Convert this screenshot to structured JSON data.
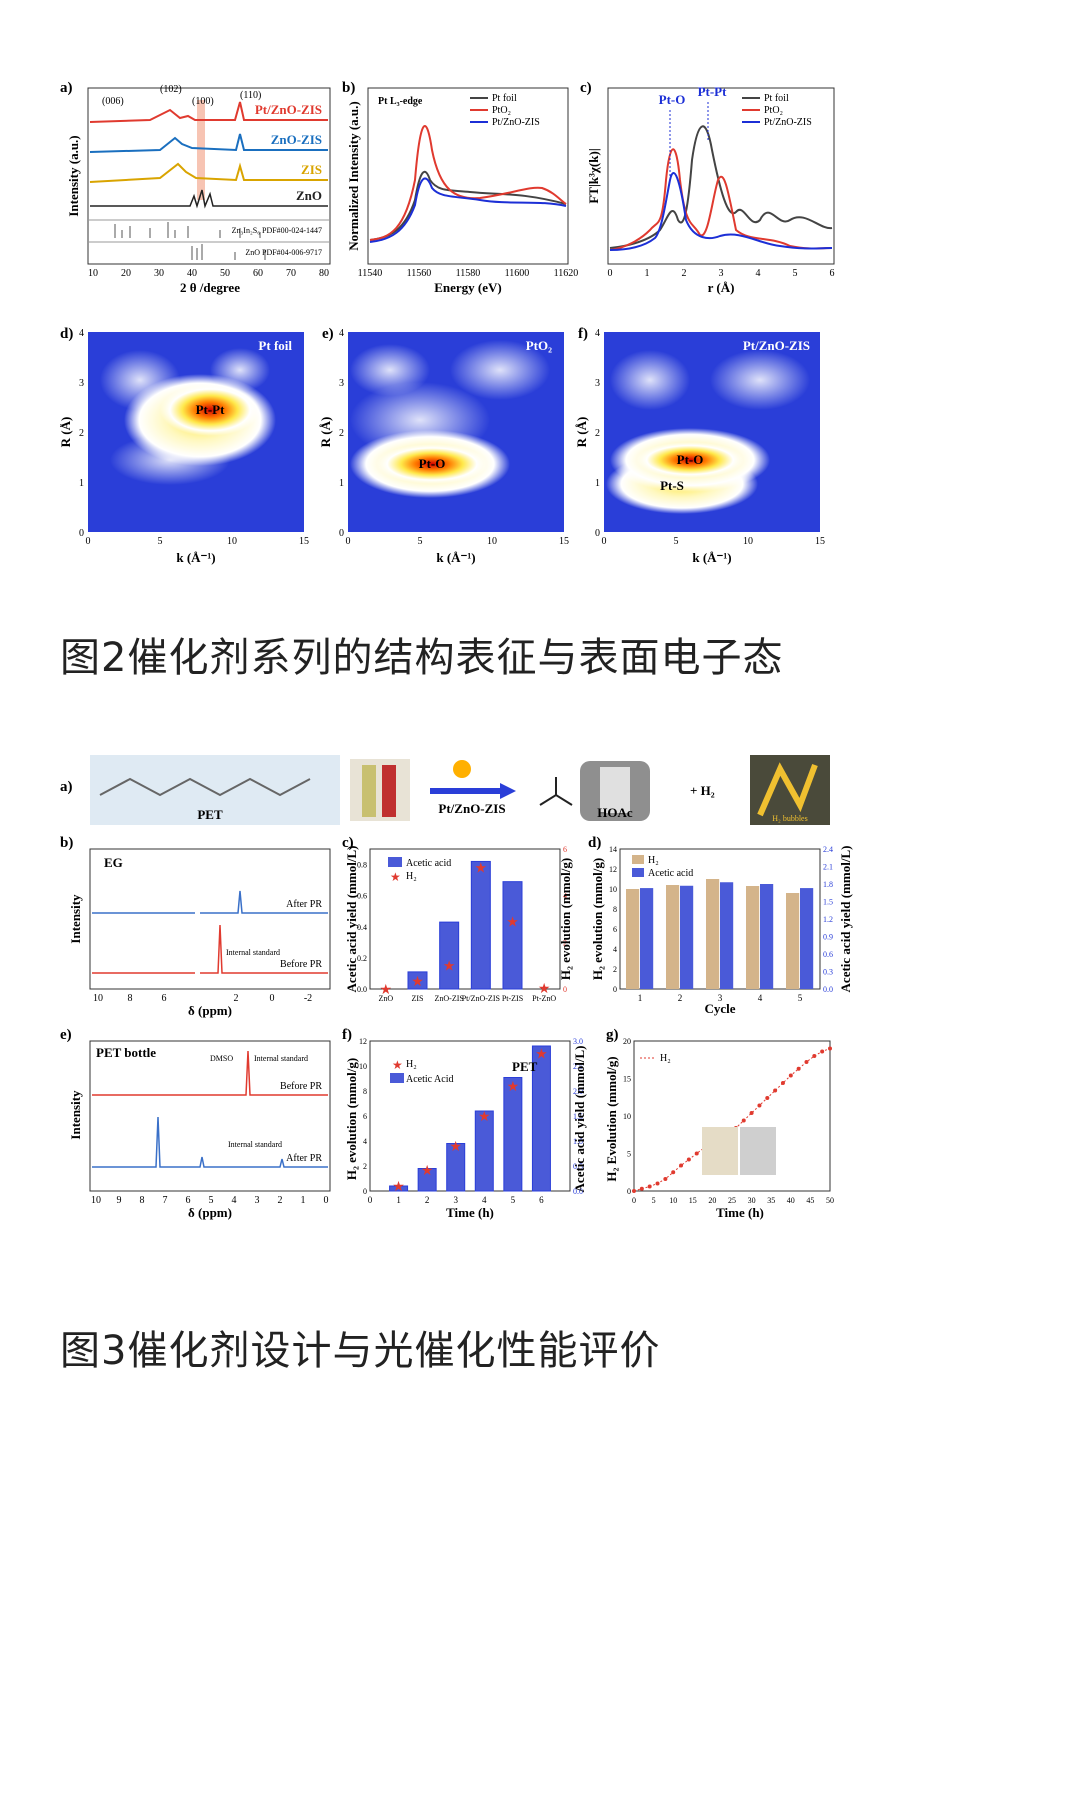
{
  "figure2": {
    "caption": "图2催化剂系列的结构表征与表面电子态",
    "a": {
      "label": "a)",
      "xlabel": "2 θ /degree",
      "ylabel": "Intensity (a.u.)",
      "peaks": [
        "(102)",
        "(006)",
        "(100)",
        "(110)"
      ],
      "traces": [
        "Pt/ZnO-ZIS",
        "ZnO-ZIS",
        "ZIS",
        "ZnO"
      ],
      "refs": [
        "Zn₃In₂S₆ PDF#00-024-1447",
        "ZnO PDF#04-006-9717"
      ],
      "xticks": [
        "10",
        "20",
        "30",
        "40",
        "50",
        "60",
        "70",
        "80"
      ]
    },
    "b": {
      "label": "b)",
      "title": "Pt L₃-edge",
      "xlabel": "Energy (eV)",
      "ylabel": "Normalized Intensity (a.u.)",
      "legend": [
        "Pt foil",
        "PtO₂",
        "Pt/ZnO-ZIS"
      ],
      "xticks": [
        "11540",
        "11560",
        "11580",
        "11600",
        "11620"
      ]
    },
    "c": {
      "label": "c)",
      "xlabel": "r (Å)",
      "ylabel": "FT|k³χ(k)|",
      "annotations": [
        "Pt-O",
        "Pt-Pt"
      ],
      "legend": [
        "Pt foil",
        "PtO₂",
        "Pt/ZnO-ZIS"
      ],
      "xticks": [
        "0",
        "1",
        "2",
        "3",
        "4",
        "5",
        "6"
      ]
    },
    "d": {
      "label": "d)",
      "title": "Pt foil",
      "spot": "Pt-Pt",
      "xlabel": "k (Å⁻¹)",
      "ylabel": "R (Å)"
    },
    "e": {
      "label": "e)",
      "title": "PtO₂",
      "spot": "Pt-O",
      "xlabel": "k (Å⁻¹)",
      "ylabel": "R (Å)"
    },
    "f": {
      "label": "f)",
      "title": "Pt/ZnO-ZIS",
      "spot": "Pt-O",
      "spot2": "Pt-S",
      "xlabel": "k (Å⁻¹)",
      "ylabel": "R (Å)"
    },
    "wt_xticks": [
      "0",
      "5",
      "10",
      "15"
    ],
    "wt_yticks": [
      "0",
      "1",
      "2",
      "3",
      "4"
    ]
  },
  "figure3": {
    "caption": "图3催化剂设计与光催化性能评价",
    "a": {
      "label": "a)",
      "pet": "PET",
      "catalyst": "Pt/ZnO-ZIS",
      "product": "HOAc",
      "plus": "+ H₂",
      "bubbles": "H₂ bubbles"
    },
    "b": {
      "label": "b)",
      "eg": "EG",
      "after": "After PR",
      "before": "Before PR",
      "internal": "Internal standard",
      "xlabel": "δ (ppm)",
      "ylabel": "Intensity",
      "xticks": [
        "10",
        "8",
        "6",
        "2",
        "0",
        "-2"
      ]
    },
    "c": {
      "label": "c)",
      "ylabel_left": "Acetic acid yield (mmol/L)",
      "ylabel_right": "H₂ evolution (mmol/g)",
      "legend": [
        "Acetic acid",
        "H₂"
      ]
    },
    "d": {
      "label": "d)",
      "xlabel": "Cycle",
      "ylabel_left": "H₂ evolution (mmol/g)",
      "ylabel_right": "Acetic acid yield (mmol/L)",
      "legend": [
        "H₂",
        "Acetic acid"
      ]
    },
    "e": {
      "label": "e)",
      "title": "PET bottle",
      "dmso": "DMSO",
      "internal": "Internal standard",
      "before": "Before PR",
      "after": "After PR",
      "xlabel": "δ (ppm)",
      "ylabel": "Intensity",
      "xticks": [
        "10",
        "9",
        "8",
        "7",
        "6",
        "5",
        "4",
        "3",
        "2",
        "1",
        "0"
      ]
    },
    "f": {
      "label": "f)",
      "title": "PET",
      "xlabel": "Time (h)",
      "ylabel_left": "H₂ evolution (mmol/g)",
      "ylabel_right": "Acetic acid yield (mmol/L)",
      "legend": [
        "H₂",
        "Acetic Acid"
      ]
    },
    "g": {
      "label": "g)",
      "xlabel": "Time (h)",
      "ylabel": "H₂ Evolution (mmol/g)",
      "legend": [
        "H₂"
      ]
    }
  },
  "chart_data": [
    {
      "type": "bar",
      "panel": "3c",
      "categories": [
        "ZnO",
        "ZIS",
        "ZnO-ZIS",
        "Pt/ZnO-ZIS",
        "Pt-ZIS",
        "Pt-ZnO"
      ],
      "series": [
        {
          "name": "Acetic acid",
          "values": [
            0.0,
            0.11,
            0.43,
            0.82,
            0.69,
            0.0
          ]
        },
        {
          "name": "H₂",
          "values": [
            0.0,
            0.35,
            1.0,
            5.2,
            2.9,
            0.05
          ]
        }
      ],
      "ylim_left": [
        0,
        0.9
      ],
      "ylim_right": [
        0,
        6
      ],
      "yticks_left": [
        "0.0",
        "0.2",
        "0.4",
        "0.6",
        "0.8"
      ],
      "yticks_right": [
        "0",
        "2",
        "4",
        "6"
      ]
    },
    {
      "type": "bar",
      "panel": "3d",
      "categories": [
        "1",
        "2",
        "3",
        "4",
        "5"
      ],
      "series": [
        {
          "name": "H₂",
          "values": [
            10.0,
            10.4,
            11.0,
            10.3,
            9.6
          ]
        },
        {
          "name": "Acetic acid",
          "values": [
            1.73,
            1.77,
            1.83,
            1.8,
            1.73
          ]
        }
      ],
      "ylim_left": [
        0,
        14
      ],
      "ylim_right": [
        0,
        2.4
      ],
      "yticks_left": [
        "0",
        "2",
        "4",
        "6",
        "8",
        "10",
        "12",
        "14"
      ],
      "yticks_right": [
        "0.0",
        "0.3",
        "0.6",
        "0.9",
        "1.2",
        "1.5",
        "1.8",
        "2.1",
        "2.4"
      ]
    },
    {
      "type": "bar",
      "panel": "3f",
      "x": [
        1,
        2,
        3,
        4,
        5,
        6
      ],
      "series": [
        {
          "name": "H₂",
          "values": [
            0.4,
            1.7,
            3.6,
            6.0,
            8.4,
            11.0
          ]
        },
        {
          "name": "Acetic Acid",
          "values": [
            0.1,
            0.45,
            0.95,
            1.6,
            2.27,
            2.9
          ]
        }
      ],
      "xlim": [
        0,
        7
      ],
      "ylim_left": [
        0,
        12
      ],
      "ylim_right": [
        0,
        3.0
      ],
      "xticks": [
        "0",
        "1",
        "2",
        "3",
        "4",
        "5",
        "6"
      ],
      "yticks_left": [
        "0",
        "2",
        "4",
        "6",
        "8",
        "10",
        "12"
      ],
      "yticks_right": [
        "0.0",
        "0.5",
        "1.0",
        "1.5",
        "2.0",
        "2.5",
        "3.0"
      ]
    },
    {
      "type": "line",
      "panel": "3g",
      "x": [
        0,
        2,
        4,
        6,
        8,
        10,
        12,
        14,
        16,
        18,
        20,
        22,
        24,
        26,
        28,
        30,
        32,
        34,
        36,
        38,
        40,
        42,
        44,
        46,
        48,
        50
      ],
      "series": [
        {
          "name": "H₂",
          "values": [
            0,
            0.3,
            0.6,
            1.0,
            1.6,
            2.5,
            3.4,
            4.2,
            5.0,
            5.8,
            6.7,
            7.5,
            8.0,
            8.4,
            9.4,
            10.4,
            11.4,
            12.4,
            13.4,
            14.4,
            15.4,
            16.3,
            17.2,
            18.0,
            18.6,
            19.0
          ]
        }
      ],
      "xlim": [
        0,
        50
      ],
      "ylim": [
        0,
        20
      ],
      "xticks": [
        "0",
        "5",
        "10",
        "15",
        "20",
        "25",
        "30",
        "35",
        "40",
        "45",
        "50"
      ],
      "yticks": [
        "0",
        "5",
        "10",
        "15",
        "20"
      ]
    }
  ]
}
